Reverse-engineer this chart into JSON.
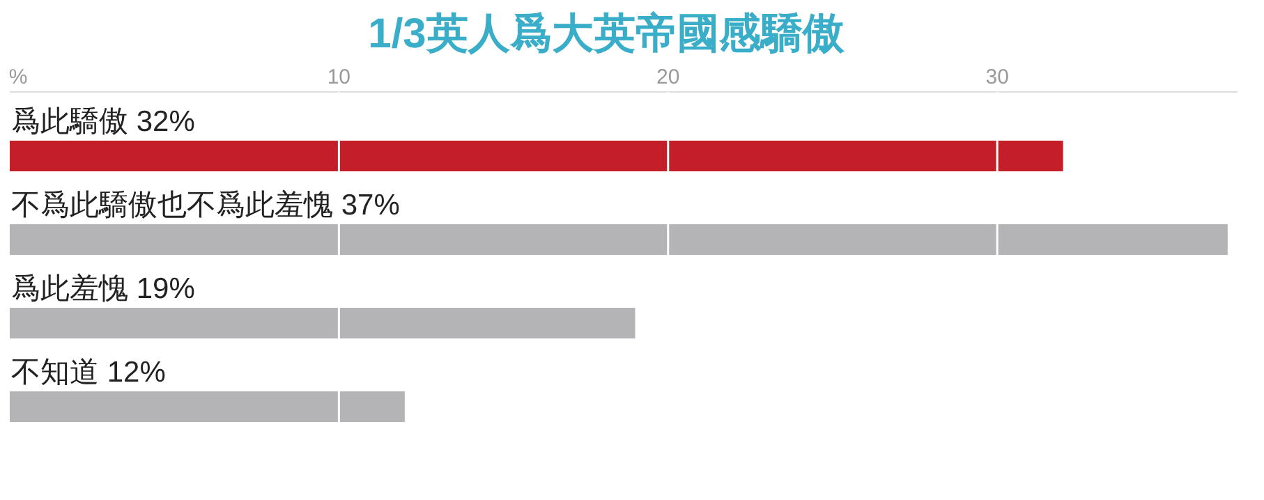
{
  "chart_data": {
    "type": "bar",
    "orientation": "horizontal",
    "title": "1/3英人爲大英帝國感驕傲",
    "categories": [
      "爲此驕傲",
      "不爲此驕傲也不爲此羞愧",
      "爲此羞愧",
      "不知道"
    ],
    "values": [
      32,
      37,
      19,
      12
    ],
    "colors": [
      "#c41e28",
      "#b4b4b6",
      "#b4b4b6",
      "#b4b4b6"
    ],
    "value_labels": [
      "32%",
      "37%",
      "19%",
      "12%"
    ],
    "xlim": [
      0,
      37.3
    ],
    "xticks": [
      {
        "value": 0,
        "label": "%"
      },
      10,
      20,
      30
    ],
    "grid": "x"
  }
}
